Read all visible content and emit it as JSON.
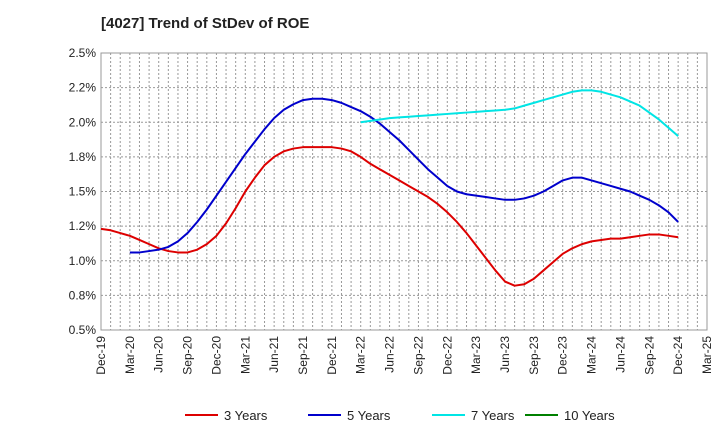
{
  "chart_data": {
    "type": "line",
    "title": "[4027]  Trend of StDev of ROE",
    "xlabel": "",
    "ylabel": "",
    "x_ticks": [
      "Dec-19",
      "Mar-20",
      "Jun-20",
      "Sep-20",
      "Dec-20",
      "Mar-21",
      "Jun-21",
      "Sep-21",
      "Dec-21",
      "Mar-22",
      "Jun-22",
      "Sep-22",
      "Dec-22",
      "Mar-23",
      "Jun-23",
      "Sep-23",
      "Dec-23",
      "Mar-24",
      "Jun-24",
      "Sep-24",
      "Dec-24",
      "Mar-25"
    ],
    "y_ticks": [
      "0.5%",
      "0.8%",
      "1.0%",
      "1.2%",
      "1.5%",
      "1.8%",
      "2.0%",
      "2.2%",
      "2.5%"
    ],
    "ylim": [
      0.5,
      2.5
    ],
    "grid": true,
    "legend_position": "bottom",
    "series": [
      {
        "name": "3 Years",
        "color": "#dd0000",
        "x": [
          "Dec-19",
          "Jan-20",
          "Feb-20",
          "Mar-20",
          "Apr-20",
          "May-20",
          "Jun-20",
          "Jul-20",
          "Aug-20",
          "Sep-20",
          "Oct-20",
          "Nov-20",
          "Dec-20",
          "Jan-21",
          "Feb-21",
          "Mar-21",
          "Apr-21",
          "May-21",
          "Jun-21",
          "Jul-21",
          "Aug-21",
          "Sep-21",
          "Oct-21",
          "Nov-21",
          "Dec-21",
          "Jan-22",
          "Feb-22",
          "Mar-22",
          "Apr-22",
          "May-22",
          "Jun-22",
          "Jul-22",
          "Aug-22",
          "Sep-22",
          "Oct-22",
          "Nov-22",
          "Dec-22",
          "Jan-23",
          "Feb-23",
          "Mar-23",
          "Apr-23",
          "May-23",
          "Jun-23",
          "Jul-23",
          "Aug-23",
          "Sep-23",
          "Oct-23",
          "Nov-23",
          "Dec-23",
          "Jan-24",
          "Feb-24",
          "Mar-24",
          "Apr-24",
          "May-24",
          "Jun-24",
          "Jul-24",
          "Aug-24",
          "Sep-24",
          "Oct-24",
          "Nov-24",
          "Dec-24"
        ],
        "values": [
          1.23,
          1.22,
          1.2,
          1.18,
          1.15,
          1.12,
          1.09,
          1.07,
          1.06,
          1.06,
          1.08,
          1.12,
          1.18,
          1.27,
          1.38,
          1.5,
          1.6,
          1.69,
          1.75,
          1.79,
          1.81,
          1.82,
          1.82,
          1.82,
          1.82,
          1.81,
          1.79,
          1.75,
          1.7,
          1.66,
          1.62,
          1.58,
          1.54,
          1.5,
          1.46,
          1.41,
          1.35,
          1.28,
          1.2,
          1.11,
          1.02,
          0.93,
          0.85,
          0.82,
          0.83,
          0.87,
          0.93,
          0.99,
          1.05,
          1.09,
          1.12,
          1.14,
          1.15,
          1.16,
          1.16,
          1.17,
          1.18,
          1.19,
          1.19,
          1.18,
          1.17
        ]
      },
      {
        "name": "5 Years",
        "color": "#0000cc",
        "x": [
          "Mar-20",
          "Apr-20",
          "May-20",
          "Jun-20",
          "Jul-20",
          "Aug-20",
          "Sep-20",
          "Oct-20",
          "Nov-20",
          "Dec-20",
          "Jan-21",
          "Feb-21",
          "Mar-21",
          "Apr-21",
          "May-21",
          "Jun-21",
          "Jul-21",
          "Aug-21",
          "Sep-21",
          "Oct-21",
          "Nov-21",
          "Dec-21",
          "Jan-22",
          "Feb-22",
          "Mar-22",
          "Apr-22",
          "May-22",
          "Jun-22",
          "Jul-22",
          "Aug-22",
          "Sep-22",
          "Oct-22",
          "Nov-22",
          "Dec-22",
          "Jan-23",
          "Feb-23",
          "Mar-23",
          "Apr-23",
          "May-23",
          "Jun-23",
          "Jul-23",
          "Aug-23",
          "Sep-23",
          "Oct-23",
          "Nov-23",
          "Dec-23",
          "Jan-24",
          "Feb-24",
          "Mar-24",
          "Apr-24",
          "May-24",
          "Jun-24",
          "Jul-24",
          "Aug-24",
          "Sep-24",
          "Oct-24",
          "Nov-24",
          "Dec-24"
        ],
        "values": [
          1.06,
          1.06,
          1.07,
          1.08,
          1.1,
          1.14,
          1.2,
          1.28,
          1.37,
          1.47,
          1.57,
          1.67,
          1.77,
          1.86,
          1.95,
          2.03,
          2.09,
          2.13,
          2.16,
          2.17,
          2.17,
          2.16,
          2.14,
          2.11,
          2.08,
          2.04,
          1.99,
          1.93,
          1.87,
          1.8,
          1.73,
          1.66,
          1.6,
          1.54,
          1.5,
          1.48,
          1.47,
          1.46,
          1.45,
          1.44,
          1.44,
          1.45,
          1.47,
          1.5,
          1.54,
          1.58,
          1.6,
          1.6,
          1.58,
          1.56,
          1.54,
          1.52,
          1.5,
          1.47,
          1.44,
          1.4,
          1.35,
          1.28
        ]
      },
      {
        "name": "7 Years",
        "color": "#00e5e5",
        "x": [
          "Mar-22",
          "Apr-22",
          "May-22",
          "Jun-22",
          "Jul-22",
          "Aug-22",
          "Sep-22",
          "Oct-22",
          "Nov-22",
          "Dec-22",
          "Jan-23",
          "Feb-23",
          "Mar-23",
          "Apr-23",
          "May-23",
          "Jun-23",
          "Jul-23",
          "Aug-23",
          "Sep-23",
          "Oct-23",
          "Nov-23",
          "Dec-23",
          "Jan-24",
          "Feb-24",
          "Mar-24",
          "Apr-24",
          "May-24",
          "Jun-24",
          "Jul-24",
          "Aug-24",
          "Sep-24",
          "Oct-24",
          "Nov-24",
          "Dec-24"
        ],
        "values": [
          2.0,
          2.01,
          2.02,
          2.03,
          2.035,
          2.04,
          2.045,
          2.05,
          2.055,
          2.06,
          2.065,
          2.07,
          2.075,
          2.08,
          2.085,
          2.09,
          2.1,
          2.12,
          2.14,
          2.16,
          2.18,
          2.2,
          2.22,
          2.23,
          2.23,
          2.22,
          2.2,
          2.18,
          2.15,
          2.12,
          2.07,
          2.02,
          1.96,
          1.9
        ]
      },
      {
        "name": "10 Years",
        "color": "#008000",
        "x": [],
        "values": []
      }
    ]
  }
}
